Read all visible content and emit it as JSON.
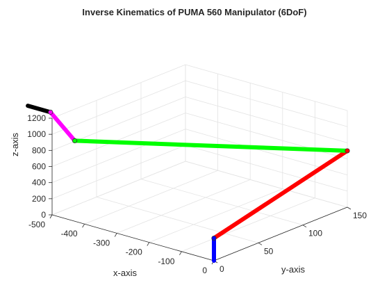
{
  "chart_data": {
    "type": "line",
    "title": "Inverse Kinematics of PUMA 560 Manipulator (6DoF)",
    "xlabel": "x-axis",
    "ylabel": "y-axis",
    "zlabel": "z-axis",
    "xlim": [
      -500,
      0
    ],
    "ylim": [
      0,
      150
    ],
    "zlim": [
      0,
      1200
    ],
    "x_ticks": [
      -500,
      -400,
      -300,
      -200,
      -100,
      0
    ],
    "y_ticks": [
      0,
      50,
      100,
      150
    ],
    "z_ticks": [
      0,
      200,
      400,
      600,
      800,
      1000,
      1200
    ],
    "grid": true,
    "links": [
      {
        "color": "#0000ff",
        "from": [
          0,
          0,
          0
        ],
        "to": [
          0,
          0,
          280
        ]
      },
      {
        "color": "#ff0000",
        "from": [
          0,
          0,
          280
        ],
        "to": [
          0,
          150,
          700
        ]
      },
      {
        "color": "#00ff00",
        "from": [
          0,
          150,
          700
        ],
        "to": [
          -430,
          0,
          1000
        ]
      },
      {
        "color": "#ff00ff",
        "from": [
          -430,
          0,
          1000
        ],
        "to": [
          -450,
          -20,
          1420
        ]
      },
      {
        "color": "#000000",
        "from": [
          -450,
          -20,
          1420
        ],
        "to": [
          -520,
          -20,
          1420
        ]
      }
    ],
    "joints": [
      [
        0,
        0,
        280
      ],
      [
        0,
        150,
        700
      ],
      [
        -430,
        0,
        1000
      ],
      [
        -450,
        -20,
        1420
      ]
    ]
  }
}
